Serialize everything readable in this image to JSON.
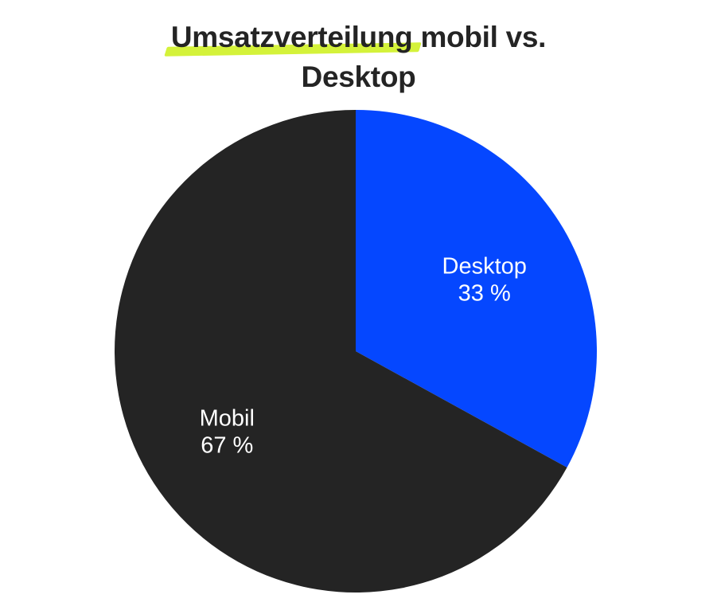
{
  "chart_data": {
    "type": "pie",
    "title": {
      "highlighted": "Umsatzverteilung",
      "rest": "mobil vs.",
      "line2": "Desktop"
    },
    "slices": [
      {
        "label": "Desktop",
        "value": 33,
        "value_label": "33 %",
        "color": "#0547ff"
      },
      {
        "label": "Mobil",
        "value": 67,
        "value_label": "67 %",
        "color": "#242424"
      }
    ],
    "start_angle_deg": 0,
    "direction": "clockwise",
    "highlight_color": "#d4f23a",
    "label_color": "#ffffff"
  }
}
